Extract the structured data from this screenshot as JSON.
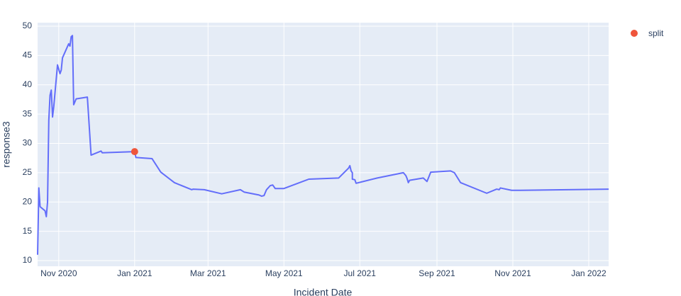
{
  "chart_data": {
    "type": "line",
    "x_title": "Incident Date",
    "y_title": "response3",
    "xlim": [
      "2020-10-15",
      "2022-01-17"
    ],
    "ylim": [
      9.04,
      50.6
    ],
    "yticks": [
      10,
      15,
      20,
      25,
      30,
      35,
      40,
      45,
      50
    ],
    "xticks": [
      {
        "value": "2020-11-01",
        "label": "Nov 2020"
      },
      {
        "value": "2021-01-01",
        "label": "Jan 2021"
      },
      {
        "value": "2021-03-01",
        "label": "Mar 2021"
      },
      {
        "value": "2021-05-01",
        "label": "May 2021"
      },
      {
        "value": "2021-07-01",
        "label": "Jul 2021"
      },
      {
        "value": "2021-09-01",
        "label": "Sep 2021"
      },
      {
        "value": "2021-11-01",
        "label": "Nov 2021"
      },
      {
        "value": "2022-01-01",
        "label": "Jan 2022"
      }
    ],
    "grid": true,
    "legend": "top-right",
    "series": [
      {
        "color": "#636efa",
        "mode": "lines",
        "x": [
          "2020-10-15",
          "2020-10-16",
          "2020-10-17",
          "2020-10-21",
          "2020-10-22",
          "2020-10-23",
          "2020-10-24",
          "2020-10-25",
          "2020-10-26",
          "2020-10-27",
          "2020-10-28",
          "2020-10-31",
          "2020-11-02",
          "2020-11-03",
          "2020-11-04",
          "2020-11-09",
          "2020-11-10",
          "2020-11-11",
          "2020-11-12",
          "2020-11-13",
          "2020-11-15",
          "2020-11-24",
          "2020-11-27",
          "2020-12-05",
          "2020-12-06",
          "2021-01-01",
          "2021-01-02",
          "2021-01-15",
          "2021-01-22",
          "2021-02-02",
          "2021-02-16",
          "2021-02-17",
          "2021-02-26",
          "2021-03-12",
          "2021-03-27",
          "2021-03-30",
          "2021-04-11",
          "2021-04-13",
          "2021-04-15",
          "2021-04-17",
          "2021-04-20",
          "2021-04-22",
          "2021-04-24",
          "2021-05-01",
          "2021-05-21",
          "2021-06-14",
          "2021-06-22",
          "2021-06-23",
          "2021-06-24",
          "2021-06-25",
          "2021-06-25",
          "2021-06-27",
          "2021-06-28",
          "2021-07-15",
          "2021-08-05",
          "2021-08-07",
          "2021-08-08",
          "2021-08-09",
          "2021-08-10",
          "2021-08-21",
          "2021-08-24",
          "2021-08-27",
          "2021-09-12",
          "2021-09-15",
          "2021-09-20",
          "2021-10-11",
          "2021-10-19",
          "2021-10-21",
          "2021-10-22",
          "2021-10-31",
          "2021-11-07",
          "2022-01-17"
        ],
        "values": [
          11.0,
          22.4,
          19.2,
          18.5,
          17.5,
          20.0,
          33.9,
          38.2,
          39.1,
          34.5,
          36.3,
          43.4,
          41.9,
          42.5,
          44.6,
          47.0,
          46.6,
          48.2,
          48.4,
          36.6,
          37.6,
          37.9,
          28.0,
          28.7,
          28.4,
          28.6,
          27.6,
          27.4,
          25.1,
          23.3,
          22.1,
          22.2,
          22.1,
          21.4,
          22.1,
          21.7,
          21.2,
          21.0,
          21.1,
          22.1,
          22.8,
          22.9,
          22.3,
          22.3,
          23.9,
          24.1,
          25.8,
          26.2,
          25.3,
          25.0,
          23.9,
          23.8,
          23.2,
          24.1,
          25.0,
          24.5,
          24.0,
          23.3,
          23.7,
          24.1,
          23.5,
          25.1,
          25.3,
          25.0,
          23.3,
          21.5,
          22.2,
          22.1,
          22.4,
          22.0,
          22.0,
          22.2
        ]
      },
      {
        "name": "split",
        "color": "#ef553b",
        "mode": "markers",
        "x": [
          "2021-01-01"
        ],
        "values": [
          28.6
        ]
      }
    ]
  }
}
